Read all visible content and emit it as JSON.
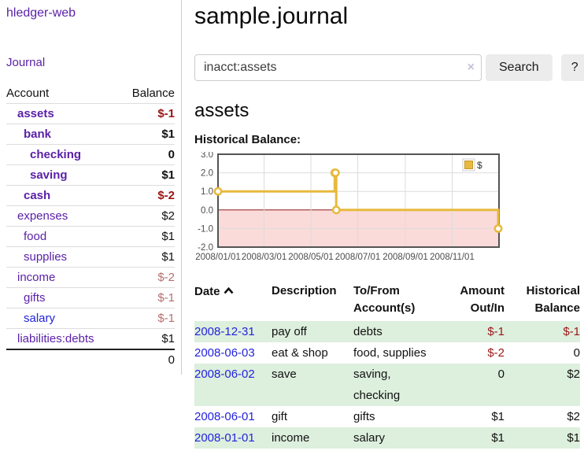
{
  "sidebar": {
    "app_title": "hledger-web",
    "journal_link": "Journal",
    "accounts_table": {
      "account_header": "Account",
      "balance_header": "Balance",
      "rows": [
        {
          "name": "assets",
          "depth": 1,
          "bold": true,
          "balance": "$-1",
          "negative": "strong"
        },
        {
          "name": "bank",
          "depth": 2,
          "bold": true,
          "balance": "$1"
        },
        {
          "name": "checking",
          "depth": 3,
          "bold": true,
          "balance": "0"
        },
        {
          "name": "saving",
          "depth": 3,
          "bold": true,
          "balance": "$1"
        },
        {
          "name": "cash",
          "depth": 2,
          "bold": true,
          "balance": "$-2",
          "negative": "strong"
        },
        {
          "name": "expenses",
          "depth": 1,
          "bold": false,
          "balance": "$2"
        },
        {
          "name": "food",
          "depth": 2,
          "bold": false,
          "balance": "$1"
        },
        {
          "name": "supplies",
          "depth": 2,
          "bold": false,
          "balance": "$1"
        },
        {
          "name": "income",
          "depth": 1,
          "bold": false,
          "balance": "$-2",
          "negative": "muted"
        },
        {
          "name": "gifts",
          "depth": 2,
          "bold": false,
          "balance": "$-1",
          "negative": "muted"
        },
        {
          "name": "salary",
          "depth": 2,
          "bold": false,
          "balance": "$-1",
          "negative": "muted",
          "link": "blue"
        },
        {
          "name": "liabilities:debts",
          "depth": 1,
          "bold": false,
          "balance": "$1"
        }
      ],
      "total": "0"
    }
  },
  "main": {
    "title": "sample.journal",
    "search": {
      "value": "inacct:assets",
      "clear_icon": "×",
      "button_label": "Search",
      "help_label": "?"
    },
    "account_heading": "assets",
    "chart_label": "Historical Balance:"
  },
  "chart_data": {
    "type": "line",
    "step": true,
    "title": "Historical Balance",
    "legend": [
      {
        "label": "$",
        "color": "#e7ba3d"
      }
    ],
    "series": [
      {
        "name": "$",
        "color": "#e7ba3d",
        "points": [
          [
            "2008-01-01",
            1
          ],
          [
            "2008-06-01",
            2
          ],
          [
            "2008-06-02",
            2
          ],
          [
            "2008-06-03",
            0
          ],
          [
            "2008-12-31",
            -1
          ]
        ]
      }
    ],
    "x_start": "2008-01-01",
    "x_end": "2009-01-01",
    "x_ticks": [
      "2008/01/01",
      "2008/03/01",
      "2008/05/01",
      "2008/07/01",
      "2008/09/01",
      "2008/11/01"
    ],
    "y_ticks": [
      "3.0",
      "2.0",
      "1.0",
      "0.0",
      "-1.0",
      "-2.0"
    ],
    "ylim": [
      -2,
      3
    ],
    "grid": true,
    "negative_region_fill": "#fbdada",
    "zero_line_color": "#8b1a1a",
    "legend_position": "top-right"
  },
  "register_table": {
    "headers": {
      "date": "Date",
      "description": "Description",
      "accounts": "To/From Account(s)",
      "amount": "Amount Out/In",
      "balance": "Historical Balance"
    },
    "rows": [
      {
        "date": "2008-12-31",
        "description": "pay off",
        "accounts": "debts",
        "amount": "$-1",
        "amount_negative": true,
        "balance": "$-1",
        "balance_negative": true
      },
      {
        "date": "2008-06-03",
        "description": "eat & shop",
        "accounts": "food, supplies",
        "amount": "$-2",
        "amount_negative": true,
        "balance": "0",
        "balance_negative": false
      },
      {
        "date": "2008-06-02",
        "description": "save",
        "accounts": "saving, checking",
        "amount": "0",
        "amount_negative": false,
        "balance": "$2",
        "balance_negative": false
      },
      {
        "date": "2008-06-01",
        "description": "gift",
        "accounts": "gifts",
        "amount": "$1",
        "amount_negative": false,
        "balance": "$2",
        "balance_negative": false
      },
      {
        "date": "2008-01-01",
        "description": "income",
        "accounts": "salary",
        "amount": "$1",
        "amount_negative": false,
        "balance": "$1",
        "balance_negative": false
      }
    ]
  },
  "colors": {
    "link_purple": "#5b21a8",
    "link_blue": "#2323dd",
    "negative_strong": "#991414",
    "negative_muted": "#b76e6e",
    "row_stripe_green": "#ddefdd",
    "chart_line_gold": "#e7ba3d",
    "chart_negative_fill": "#fbdada",
    "chart_zero_line": "#8b1a1a",
    "button_gray": "#ececec"
  }
}
